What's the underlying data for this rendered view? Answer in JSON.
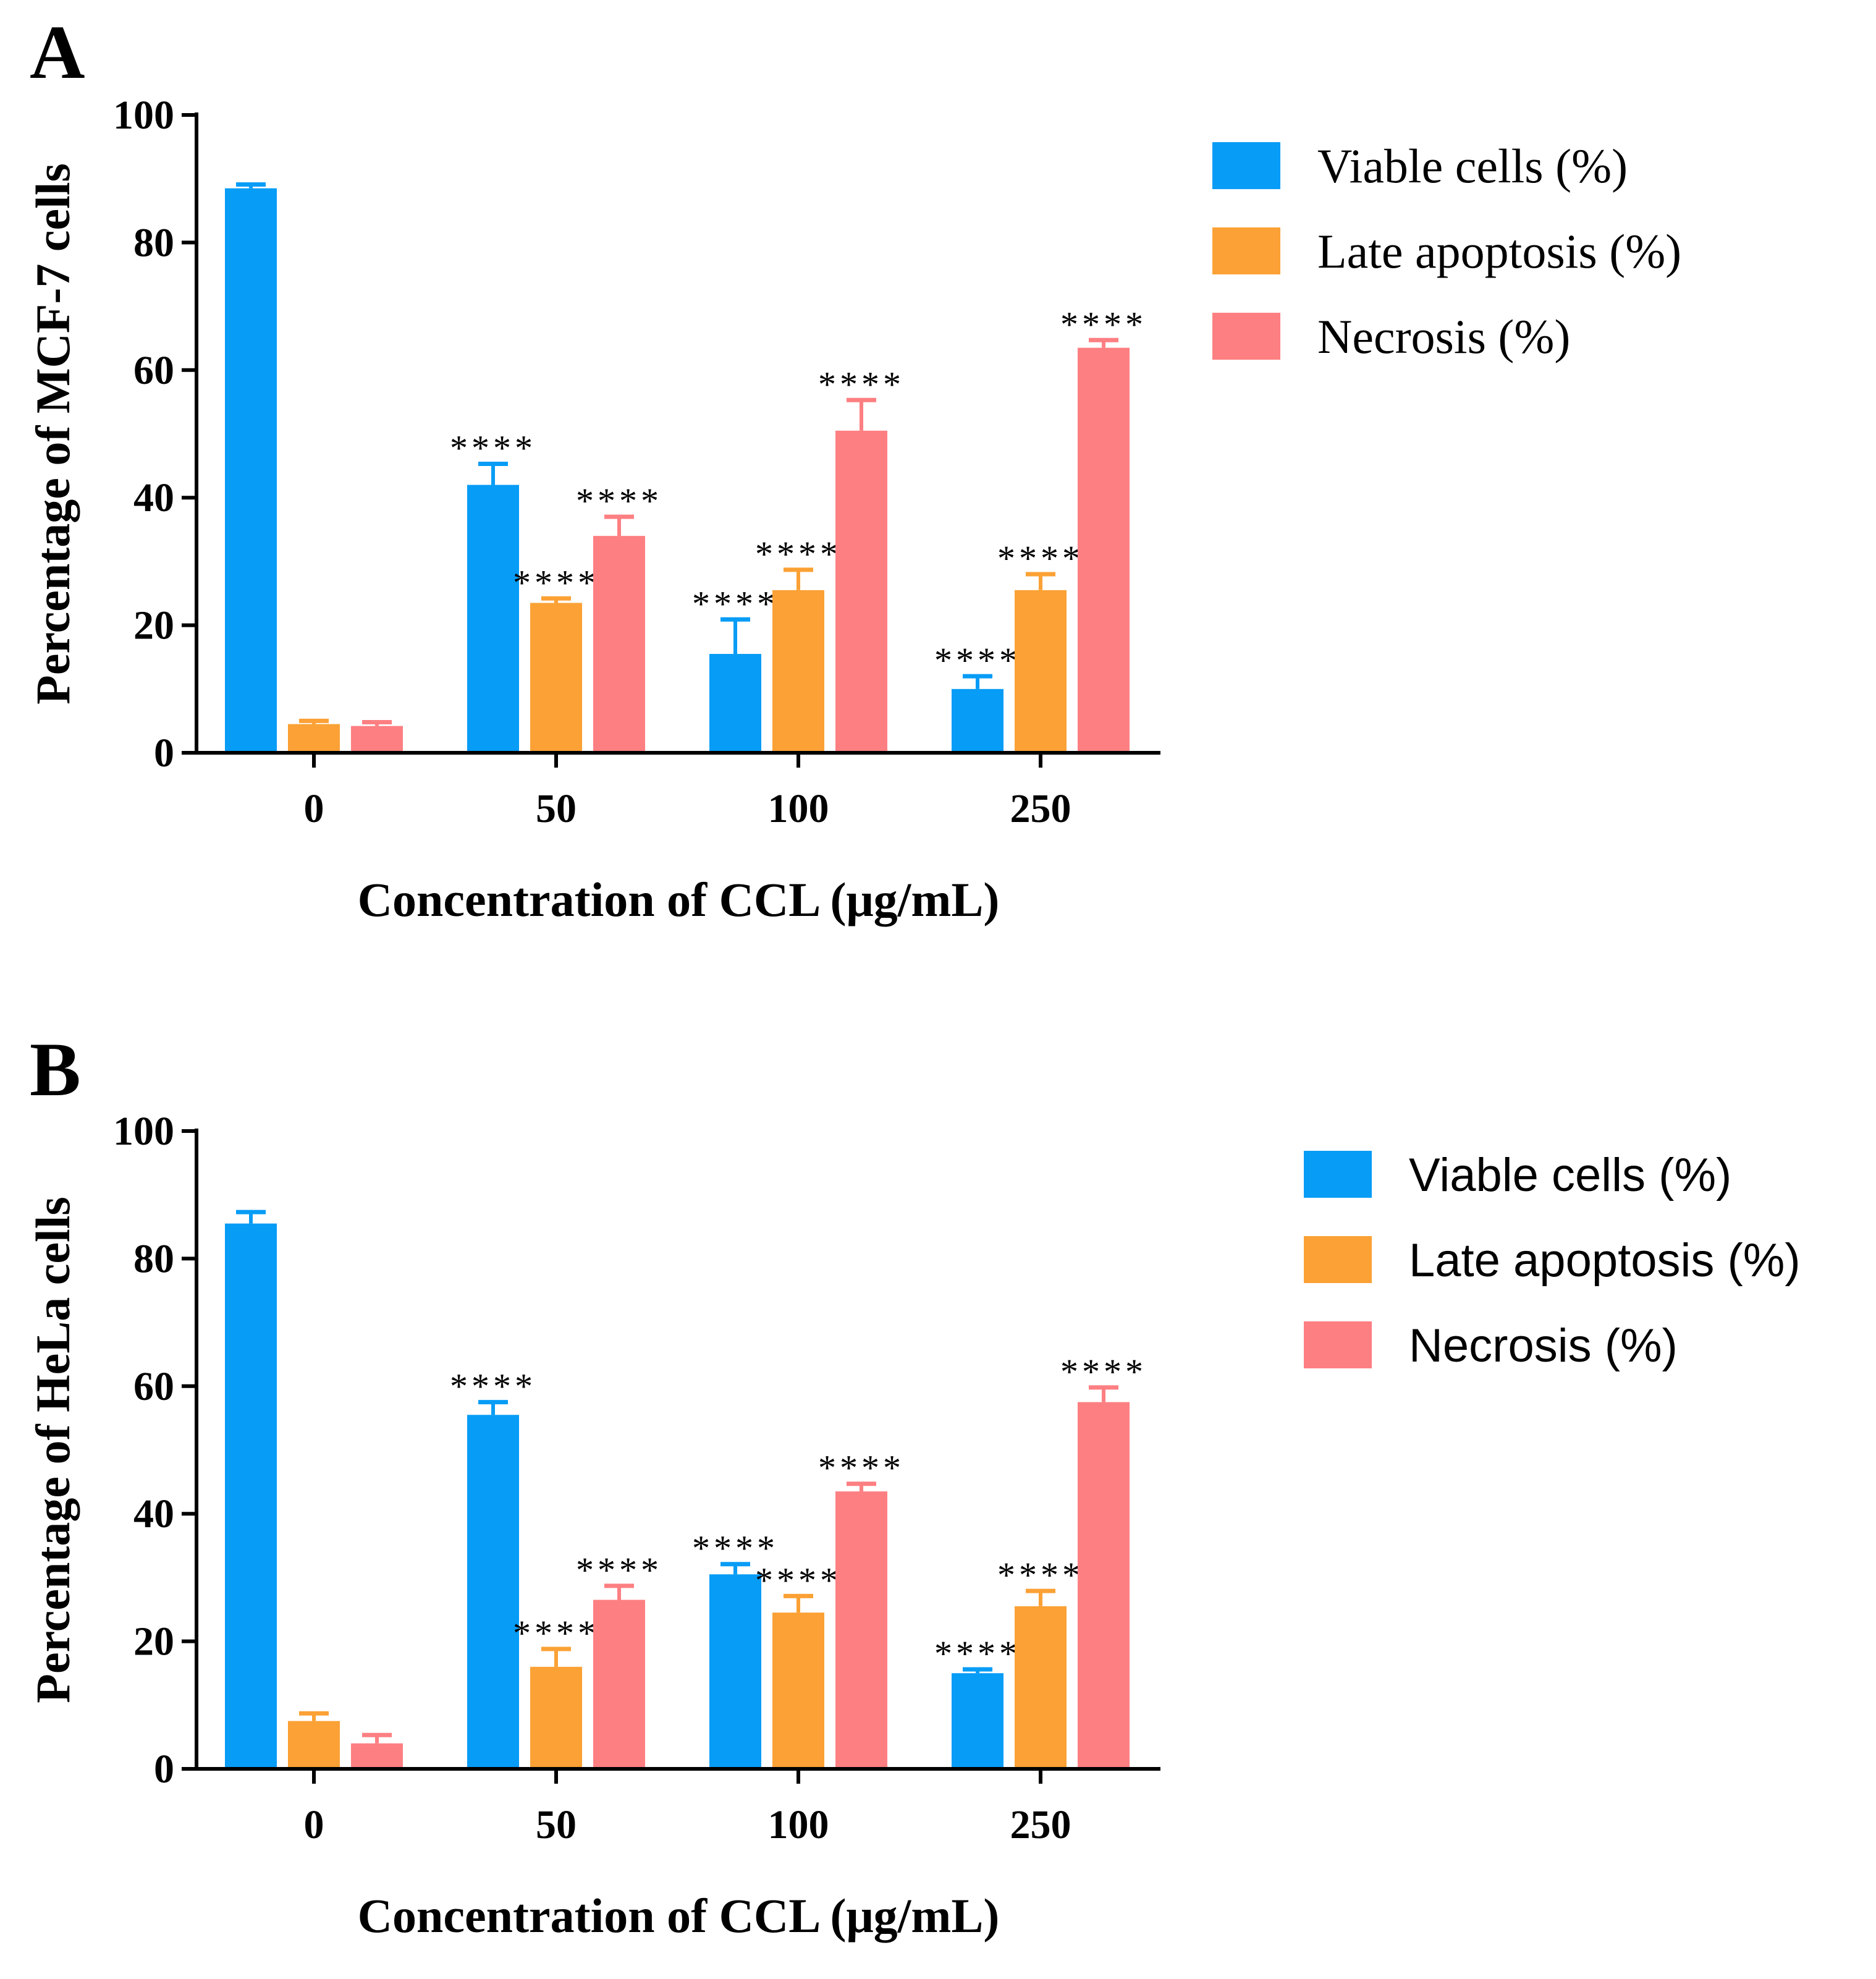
{
  "series_colors": [
    "#079CF6",
    "#FBA135",
    "#FD7F82"
  ],
  "chart_data": [
    {
      "type": "bar",
      "panel": "A",
      "ylabel": "Percentage of MCF-7 cells",
      "xlabel": "Concentration of CCL (μg/mL)",
      "ylim": [
        0,
        100
      ],
      "yticks": [
        "0",
        "20",
        "40",
        "60",
        "80",
        "100"
      ],
      "categories": [
        "0",
        "50",
        "100",
        "250"
      ],
      "legend": [
        "Viable cells (%)",
        "Late apoptosis (%)",
        "Necrosis (%)"
      ],
      "series": [
        {
          "name": "Viable cells (%)",
          "values": [
            88.5,
            42,
            15.5,
            10
          ],
          "errors": [
            0.6,
            3.3,
            5.4,
            2
          ],
          "labels": [
            "",
            "****",
            "****",
            "****"
          ]
        },
        {
          "name": "Late apoptosis (%)",
          "values": [
            4.5,
            23.5,
            25.5,
            25.5
          ],
          "errors": [
            0.5,
            0.7,
            3.2,
            2.5
          ],
          "labels": [
            "",
            "****",
            "****",
            "****"
          ]
        },
        {
          "name": "Necrosis (%)",
          "values": [
            4.2,
            34,
            50.5,
            63.5
          ],
          "errors": [
            0.6,
            3,
            4.8,
            1.2
          ],
          "labels": [
            "",
            "****",
            "****",
            "****"
          ]
        }
      ]
    },
    {
      "type": "bar",
      "panel": "B",
      "ylabel": "Percentage of HeLa cells",
      "xlabel": "Concentration of CCL (μg/mL)",
      "ylim": [
        0,
        100
      ],
      "yticks": [
        "0",
        "20",
        "40",
        "60",
        "80",
        "100"
      ],
      "categories": [
        "0",
        "50",
        "100",
        "250"
      ],
      "legend": [
        "Viable cells (%)",
        "Late apoptosis (%)",
        "Necrosis (%)"
      ],
      "series": [
        {
          "name": "Viable cells (%)",
          "values": [
            85.5,
            55.5,
            30.5,
            15
          ],
          "errors": [
            1.8,
            2,
            1.6,
            0.6
          ],
          "labels": [
            "",
            "****",
            "****",
            "****"
          ]
        },
        {
          "name": "Late apoptosis (%)",
          "values": [
            7.5,
            16,
            24.5,
            25.5
          ],
          "errors": [
            1.2,
            2.8,
            2.6,
            2.4
          ],
          "labels": [
            "",
            "****",
            "****",
            "****"
          ]
        },
        {
          "name": "Necrosis (%)",
          "values": [
            4,
            26.5,
            43.5,
            57.5
          ],
          "errors": [
            1.3,
            2.2,
            1.2,
            2.3
          ],
          "labels": [
            "",
            "****",
            "****",
            "****"
          ]
        }
      ]
    }
  ]
}
